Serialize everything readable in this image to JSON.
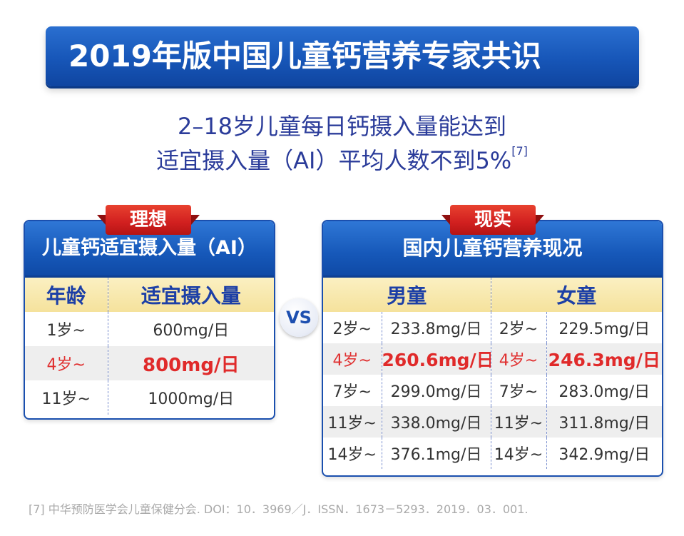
{
  "title": "2019年版中国儿童钙营养专家共识",
  "subtitle_line1": "2–18岁儿童每日钙摄入量能达到",
  "subtitle_line2": "适宜摄入量（AI）平均人数不到5%",
  "subtitle_ref": "[7]",
  "vs_label": "VS",
  "colors": {
    "blue": "#1756b8",
    "red": "#d11f1f",
    "highlight_red": "#e03030",
    "header_yellow": "#f5e29c"
  },
  "left_panel": {
    "ribbon": "理想",
    "header": "儿童钙适宜摄入量（AI）",
    "columns": [
      "年龄",
      "适宜摄入量"
    ],
    "rows": [
      {
        "age": "1岁~",
        "value": "600mg/日"
      },
      {
        "age": "4岁~",
        "value": "800mg/日"
      },
      {
        "age": "11岁~",
        "value": "1000mg/日"
      }
    ]
  },
  "right_panel": {
    "ribbon": "现实",
    "header": "国内儿童钙营养现况",
    "groups": [
      "男童",
      "女童"
    ],
    "rows": [
      {
        "boy_age": "2岁~",
        "boy_value": "233.8mg/日",
        "girl_age": "2岁~",
        "girl_value": "229.5mg/日"
      },
      {
        "boy_age": "4岁~",
        "boy_value": "260.6mg/日",
        "girl_age": "4岁~",
        "girl_value": "246.3mg/日"
      },
      {
        "boy_age": "7岁~",
        "boy_value": "299.0mg/日",
        "girl_age": "7岁~",
        "girl_value": "283.0mg/日"
      },
      {
        "boy_age": "11岁~",
        "boy_value": "338.0mg/日",
        "girl_age": "11岁~",
        "girl_value": "311.8mg/日"
      },
      {
        "boy_age": "14岁~",
        "boy_value": "376.1mg/日",
        "girl_age": "14岁~",
        "girl_value": "342.9mg/日"
      }
    ]
  },
  "footnote": "[7] 中华预防医学会儿童保健分会. DOI：10．3969／J．ISSN．1673－5293．2019．03．001."
}
